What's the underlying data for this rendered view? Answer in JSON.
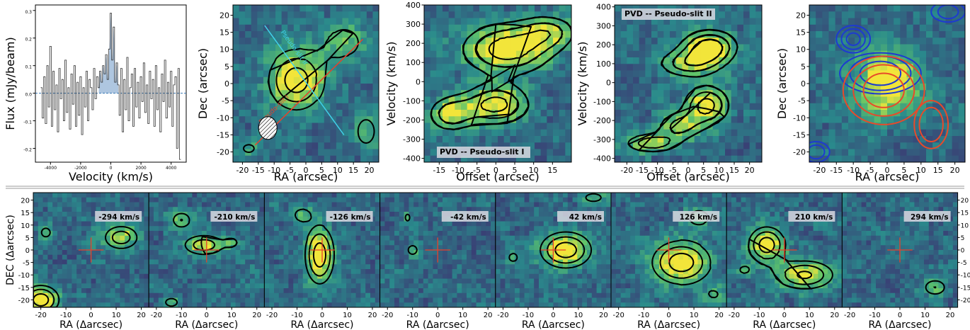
{
  "colors": {
    "map_dark": "#3e2a6e",
    "map_mid": "#2a8a8c",
    "map_light": "#5fc36a",
    "map_peak": "#f2e53a",
    "contour": "#000000",
    "spectrum_line": "#333333",
    "spectrum_fill": "#aec6e0",
    "baseline": "#3a78b5",
    "slit1": "#e8402a",
    "slit2": "#40d0e8",
    "red_contour": "#e84a2a",
    "blue_contour": "#1e3ad0",
    "cross": "#e8402a",
    "separator": "#bbbbbb"
  },
  "chart_data": [
    {
      "type": "line",
      "panel": "spectrum",
      "xlabel": "Velocity (km/s)",
      "ylabel": "Flux (mJy/beam)",
      "xlim": [
        -5000,
        5000
      ],
      "ylim": [
        -0.25,
        0.32
      ],
      "xticks": [
        -4000,
        -2000,
        0,
        2000,
        4000
      ],
      "yticks": [
        -0.2,
        -0.1,
        0.0,
        0.1,
        0.2,
        0.3
      ],
      "xticklabels": [
        "-4000",
        "-2000",
        "0",
        "2000",
        "4000"
      ],
      "yticklabels": [
        "-0.2",
        "-0.1",
        "0.0",
        "0.1",
        "0.2",
        "0.3"
      ],
      "shaded_range": [
        -800,
        500
      ],
      "baseline": 0.0,
      "x": [
        -4600,
        -4500,
        -4400,
        -4300,
        -4200,
        -4100,
        -4000,
        -3900,
        -3800,
        -3700,
        -3600,
        -3500,
        -3400,
        -3300,
        -3200,
        -3100,
        -3000,
        -2900,
        -2800,
        -2700,
        -2600,
        -2500,
        -2400,
        -2300,
        -2200,
        -2100,
        -2000,
        -1900,
        -1800,
        -1700,
        -1600,
        -1500,
        -1400,
        -1300,
        -1200,
        -1100,
        -1000,
        -900,
        -800,
        -700,
        -600,
        -500,
        -400,
        -300,
        -200,
        -100,
        0,
        100,
        200,
        300,
        400,
        500,
        600,
        700,
        800,
        900,
        1000,
        1100,
        1200,
        1300,
        1400,
        1500,
        1600,
        1700,
        1800,
        1900,
        2000,
        2100,
        2200,
        2300,
        2400,
        2500,
        2600,
        2700,
        2800,
        2900,
        3000,
        3100,
        3200,
        3300,
        3400,
        3500,
        3600,
        3700,
        3800,
        3900,
        4000,
        4100,
        4200,
        4300,
        4400,
        4500,
        4600
      ],
      "y": [
        0.02,
        -0.09,
        0.06,
        -0.11,
        0.1,
        -0.05,
        0.17,
        -0.12,
        0.08,
        -0.06,
        0.03,
        -0.14,
        0.09,
        -0.02,
        0.05,
        -0.1,
        0.12,
        -0.07,
        0.02,
        -0.13,
        0.07,
        -0.04,
        0.1,
        -0.12,
        0.04,
        -0.08,
        0.06,
        -0.15,
        0.02,
        -0.05,
        0.08,
        -0.1,
        0.05,
        0.02,
        -0.06,
        0.09,
        -0.02,
        0.06,
        0.02,
        0.08,
        0.04,
        0.1,
        0.07,
        0.14,
        0.05,
        0.16,
        0.29,
        0.12,
        0.24,
        0.04,
        0.11,
        0.03,
        -0.08,
        0.09,
        -0.14,
        0.05,
        -0.06,
        0.13,
        -0.1,
        0.02,
        0.07,
        -0.12,
        0.09,
        -0.05,
        0.04,
        -0.09,
        0.06,
        -0.03,
        0.11,
        -0.07,
        0.03,
        -0.11,
        0.08,
        -0.02,
        0.05,
        -0.12,
        0.1,
        -0.06,
        0.02,
        -0.14,
        0.07,
        -0.03,
        0.12,
        -0.09,
        0.04,
        -0.05,
        0.08,
        -0.12,
        0.03,
        0.06,
        -0.2,
        0.09,
        -0.24
      ]
    },
    {
      "type": "heatmap",
      "panel": "moment0",
      "xlabel": "RA (arcsec)",
      "ylabel": "Dec (arcsec)",
      "xlim": [
        -23,
        23
      ],
      "ylim": [
        -23,
        23
      ],
      "xticks": [
        -20,
        -15,
        -10,
        -5,
        0,
        5,
        10,
        15,
        20
      ],
      "yticks": [
        -20,
        -15,
        -10,
        -5,
        0,
        5,
        10,
        15,
        20
      ],
      "xticklabels": [
        "-20",
        "-15",
        "-10",
        "-5",
        "0",
        "5",
        "10",
        "15",
        "20"
      ],
      "yticklabels": [
        "-20",
        "-15",
        "-10",
        "-5",
        "0",
        "5",
        "10",
        "15",
        "20"
      ],
      "emission": [
        {
          "x": -3,
          "y": 1,
          "sx": 6,
          "sy": 6,
          "a": 1.0
        },
        {
          "x": 12,
          "y": 12,
          "sx": 6,
          "sy": 5,
          "a": 0.45
        },
        {
          "x": 19,
          "y": -14,
          "sx": 3,
          "sy": 4,
          "a": 0.5
        },
        {
          "x": -18,
          "y": -19,
          "sx": 3,
          "sy": 2,
          "a": 0.4
        }
      ],
      "contour_levels": [
        0.35,
        0.6,
        0.85
      ],
      "slits": [
        {
          "label": "Pseudo-slit I",
          "from": [
            -16,
            -18
          ],
          "to": [
            18,
            13
          ]
        },
        {
          "label": "Pseudo-slit II",
          "from": [
            -13,
            17
          ],
          "to": [
            12,
            -15
          ]
        }
      ],
      "beam": {
        "x": -12,
        "y": -13
      }
    },
    {
      "type": "heatmap",
      "panel": "pvd1",
      "label": "PVD -- Pseudo-slit I",
      "xlabel": "Offset (arcsec)",
      "ylabel": "Velocity (km/s)",
      "xlim": [
        -19,
        20
      ],
      "ylim": [
        -420,
        400
      ],
      "xticks": [
        -15,
        -10,
        -5,
        0,
        5,
        10,
        15
      ],
      "yticks": [
        -400,
        -300,
        -200,
        -100,
        0,
        100,
        200,
        300,
        400
      ],
      "xticklabels": [
        "-15",
        "-10",
        "-5",
        "0",
        "5",
        "10",
        "15"
      ],
      "yticklabels": [
        "-400",
        "-300",
        "-200",
        "-100",
        "0",
        "100",
        "200",
        "300",
        "400"
      ],
      "emission": [
        {
          "x": 3,
          "y": 170,
          "sx": 8,
          "sy": 90,
          "a": 1.0
        },
        {
          "x": 14,
          "y": 260,
          "sx": 5,
          "sy": 60,
          "a": 0.6
        },
        {
          "x": 0,
          "y": -120,
          "sx": 6,
          "sy": 70,
          "a": 0.95
        },
        {
          "x": -12,
          "y": -170,
          "sx": 4,
          "sy": 60,
          "a": 0.75
        }
      ],
      "contour_levels": [
        0.35,
        0.6,
        0.85
      ]
    },
    {
      "type": "heatmap",
      "panel": "pvd2",
      "label": "PVD -- Pseudo-slit II",
      "xlabel": "Offset (arcsec)",
      "ylabel": "Velocity (km/s)",
      "xlim": [
        -24,
        24
      ],
      "ylim": [
        -420,
        410
      ],
      "xticks": [
        -20,
        -15,
        -10,
        -5,
        0,
        5,
        10,
        15,
        20
      ],
      "yticks": [
        -400,
        -300,
        -200,
        -100,
        0,
        100,
        200,
        300,
        400
      ],
      "xticklabels": [
        "-20",
        "-15",
        "-10",
        "-5",
        "0",
        "5",
        "10",
        "15",
        "20"
      ],
      "yticklabels": [
        "-400",
        "-300",
        "-200",
        "-100",
        "0",
        "100",
        "200",
        "300",
        "400"
      ],
      "emission": [
        {
          "x": 7,
          "y": 190,
          "sx": 6,
          "sy": 60,
          "a": 1.0
        },
        {
          "x": 0,
          "y": 100,
          "sx": 7,
          "sy": 50,
          "a": 0.7
        },
        {
          "x": 6,
          "y": -120,
          "sx": 5,
          "sy": 70,
          "a": 0.95
        },
        {
          "x": -3,
          "y": -230,
          "sx": 5,
          "sy": 50,
          "a": 0.65
        },
        {
          "x": -12,
          "y": -320,
          "sx": 6,
          "sy": 35,
          "a": 0.75
        }
      ],
      "contour_levels": [
        0.35,
        0.6,
        0.85
      ]
    },
    {
      "type": "heatmap",
      "panel": "channel-overlay",
      "xlabel": "RA (arcsec)",
      "ylabel": "Dec (arcsec)",
      "xlim": [
        -23,
        23
      ],
      "ylim": [
        -23,
        23
      ],
      "xticks": [
        -20,
        -15,
        -10,
        -5,
        0,
        5,
        10,
        15,
        20
      ],
      "yticks": [
        -20,
        -15,
        -10,
        -5,
        0,
        5,
        10,
        15,
        20
      ],
      "xticklabels": [
        "-20",
        "-15",
        "-10",
        "-5",
        "0",
        "5",
        "10",
        "15",
        "20"
      ],
      "yticklabels": [
        "-20",
        "-15",
        "-10",
        "-5",
        "0",
        "5",
        "10",
        "15",
        "20"
      ],
      "emission": [
        {
          "x": 0,
          "y": 0,
          "sx": 7,
          "sy": 7,
          "a": 1.0
        }
      ],
      "blue_contours": [
        {
          "x": -10,
          "y": 13,
          "rx": [
            5,
            3.5,
            2
          ],
          "ry": [
            4,
            3,
            1.8
          ]
        },
        {
          "x": -2,
          "y": 3,
          "rx": [
            12,
            9,
            6
          ],
          "ry": [
            6,
            5,
            3.5
          ]
        },
        {
          "x": 18,
          "y": 21,
          "rx": [
            5,
            3
          ],
          "ry": [
            3,
            2
          ]
        },
        {
          "x": -21,
          "y": -20,
          "rx": [
            4,
            2.5
          ],
          "ry": [
            3,
            2
          ]
        }
      ],
      "red_contours": [
        {
          "x": -1,
          "y": -2,
          "rx": [
            12,
            9,
            6
          ],
          "ry": [
            10,
            7.5,
            5
          ]
        },
        {
          "x": 13,
          "y": -12,
          "rx": [
            5,
            3.5
          ],
          "ry": [
            7,
            5
          ]
        }
      ]
    },
    {
      "type": "heatmap",
      "panel": "channel-maps",
      "xlabel": "RA (Δarcsec)",
      "ylabel": "DEC (Δarcsec)",
      "xlim": [
        -23,
        23
      ],
      "ylim": [
        -23,
        23
      ],
      "xticks": [
        -20,
        -10,
        0,
        10,
        20
      ],
      "yticks": [
        -20,
        -15,
        -10,
        -5,
        0,
        5,
        10,
        15,
        20
      ],
      "xticklabels": [
        "-20",
        "-10",
        "0",
        "10",
        "20"
      ],
      "yticklabels": [
        "-20",
        "-15",
        "-10",
        "-5",
        "0",
        "5",
        "10",
        "15",
        "20"
      ],
      "contour_levels": [
        0.35,
        0.6,
        0.85
      ],
      "channels": [
        {
          "label": "-294 km/s",
          "emission": [
            {
              "x": 12,
              "y": 5,
              "sx": 5,
              "sy": 3.5,
              "a": 0.75
            },
            {
              "x": -18,
              "y": 7,
              "sx": 2,
              "sy": 2,
              "a": 0.5
            },
            {
              "x": -20,
              "y": -20,
              "sx": 5,
              "sy": 4,
              "a": 1.0
            }
          ]
        },
        {
          "label": "-210 km/s",
          "emission": [
            {
              "x": -10,
              "y": 12,
              "sx": 3,
              "sy": 2.5,
              "a": 0.6
            },
            {
              "x": -1,
              "y": 2,
              "sx": 6,
              "sy": 3,
              "a": 0.75
            },
            {
              "x": 10,
              "y": 3,
              "sx": 2,
              "sy": 1.5,
              "a": 0.45
            },
            {
              "x": -14,
              "y": -21,
              "sx": 3,
              "sy": 2,
              "a": 0.45
            }
          ]
        },
        {
          "label": "-126 km/s",
          "emission": [
            {
              "x": -8,
              "y": 14,
              "sx": 3,
              "sy": 2.5,
              "a": 0.5
            },
            {
              "x": -1,
              "y": -2,
              "sx": 4,
              "sy": 8,
              "a": 1.0
            }
          ]
        },
        {
          "label": "-42 km/s",
          "emission": [
            {
              "x": -12,
              "y": 13,
              "sx": 1,
              "sy": 1.5,
              "a": 0.5
            },
            {
              "x": -10,
              "y": 0,
              "sx": 2,
              "sy": 2,
              "a": 0.5
            }
          ]
        },
        {
          "label": "42 km/s",
          "emission": [
            {
              "x": 5,
              "y": 0,
              "sx": 7,
              "sy": 5,
              "a": 1.0
            },
            {
              "x": -16,
              "y": -3,
              "sx": 2,
              "sy": 2,
              "a": 0.45
            },
            {
              "x": 16,
              "y": 21,
              "sx": 4,
              "sy": 2,
              "a": 0.45
            }
          ]
        },
        {
          "label": "126 km/s",
          "emission": [
            {
              "x": 5,
              "y": -5,
              "sx": 8,
              "sy": 6,
              "a": 1.0
            },
            {
              "x": 12,
              "y": 13,
              "sx": 4,
              "sy": 3,
              "a": 0.5
            },
            {
              "x": 18,
              "y": -18,
              "sx": 4,
              "sy": 3,
              "a": 0.35
            }
          ]
        },
        {
          "label": "210 km/s",
          "emission": [
            {
              "x": -7,
              "y": 2,
              "sx": 5,
              "sy": 5,
              "a": 1.0
            },
            {
              "x": 8,
              "y": -10,
              "sx": 8,
              "sy": 4,
              "a": 0.9
            },
            {
              "x": -16,
              "y": -8,
              "sx": 2,
              "sy": 1.5,
              "a": 0.45
            }
          ]
        },
        {
          "label": "294 km/s",
          "emission": [
            {
              "x": 14,
              "y": -15,
              "sx": 3.5,
              "sy": 2.5,
              "a": 0.6
            }
          ]
        }
      ]
    }
  ]
}
